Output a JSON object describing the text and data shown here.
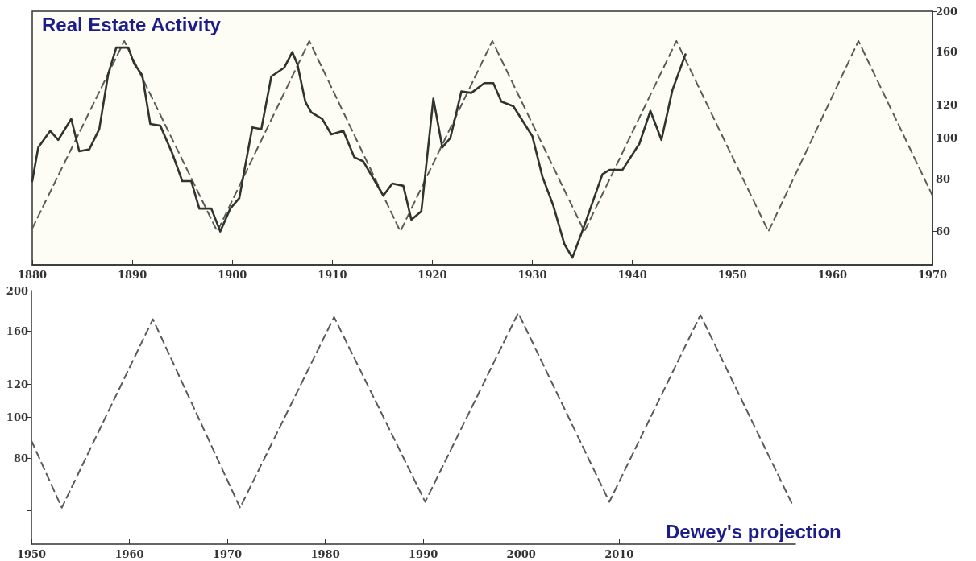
{
  "chart_data": [
    {
      "type": "line",
      "title": "Real Estate Activity",
      "xlim": [
        1880,
        1970
      ],
      "xticks": [
        1880,
        1890,
        1900,
        1910,
        1920,
        1930,
        1940,
        1950,
        1960,
        1970
      ],
      "ylim": [
        50,
        200
      ],
      "yticks": [
        60,
        80,
        100,
        120,
        160,
        200
      ],
      "log": "y",
      "grid": false,
      "marker": "none",
      "series": [
        {
          "color": "#2f342f",
          "line_style": "solid",
          "x": [
            1880,
            1880.6,
            1881.8,
            1882.6,
            1883.9,
            1884.7,
            1885.7,
            1886.7,
            1887.6,
            1888.4,
            1889.6,
            1890.2,
            1891,
            1891.8,
            1892.8,
            1894,
            1895,
            1895.9,
            1896.7,
            1897.9,
            1898.8,
            1899.8,
            1900.7,
            1902,
            1902.9,
            1903.9,
            1905.2,
            1906,
            1906.5,
            1907.3,
            1907.9,
            1909,
            1909.9,
            1911.1,
            1912.2,
            1913.1,
            1915.1,
            1916,
            1917.1,
            1917.9,
            1918.9,
            1920.1,
            1921,
            1921.8,
            1922.9,
            1923.9,
            1925.2,
            1926.1,
            1926.9,
            1928.1,
            1930,
            1931,
            1932.1,
            1933.2,
            1934,
            1935.2,
            1937,
            1937.7,
            1939,
            1940.7,
            1941.8,
            1942.9,
            1944,
            1945.3
          ],
          "values": [
            79,
            95,
            104,
            99,
            111,
            93,
            94,
            105,
            142,
            164,
            164,
            150,
            141,
            108,
            107,
            92,
            79,
            79,
            68,
            68,
            60,
            68,
            72,
            106,
            105,
            140,
            147,
            160,
            150,
            122,
            115,
            111,
            102,
            104,
            90,
            88,
            73,
            78,
            77,
            64,
            67,
            124,
            95,
            100,
            129,
            128,
            135,
            135,
            122,
            119,
            101,
            81,
            69,
            56,
            52,
            62,
            82,
            84,
            84,
            97,
            116,
            99,
            130,
            158
          ]
        },
        {
          "color": "#5a5a5a",
          "line_style": "dashed",
          "x": [
            1880,
            1889.2,
            1898.5,
            1907.7,
            1916.8,
            1926,
            1935.2,
            1944.4,
            1953.6,
            1962.6,
            1970
          ],
          "values": [
            61,
            170,
            60,
            170,
            60,
            170,
            60,
            170,
            60,
            170,
            73
          ]
        }
      ]
    },
    {
      "type": "line",
      "xlim": [
        1950,
        2028
      ],
      "xticks": [
        1950,
        1960,
        1970,
        1980,
        1990,
        2000,
        2010
      ],
      "ylim": [
        50,
        200
      ],
      "yticks": [
        {
          "value": 60,
          "label": null
        },
        80,
        100,
        120,
        160,
        200
      ],
      "log": "y",
      "grid": false,
      "marker": "none",
      "annotations": [
        "Dewey's projection"
      ],
      "series": [
        {
          "color": "#5a5a5a",
          "line_style": "dashed",
          "x": [
            1950,
            1953.1,
            1962.4,
            1971.3,
            1980.9,
            1990.2,
            1999.7,
            2009,
            2018.3,
            2027.7
          ],
          "values": [
            88,
            61,
            171,
            61,
            173,
            63,
            177,
            63,
            175,
            62
          ]
        }
      ]
    }
  ]
}
